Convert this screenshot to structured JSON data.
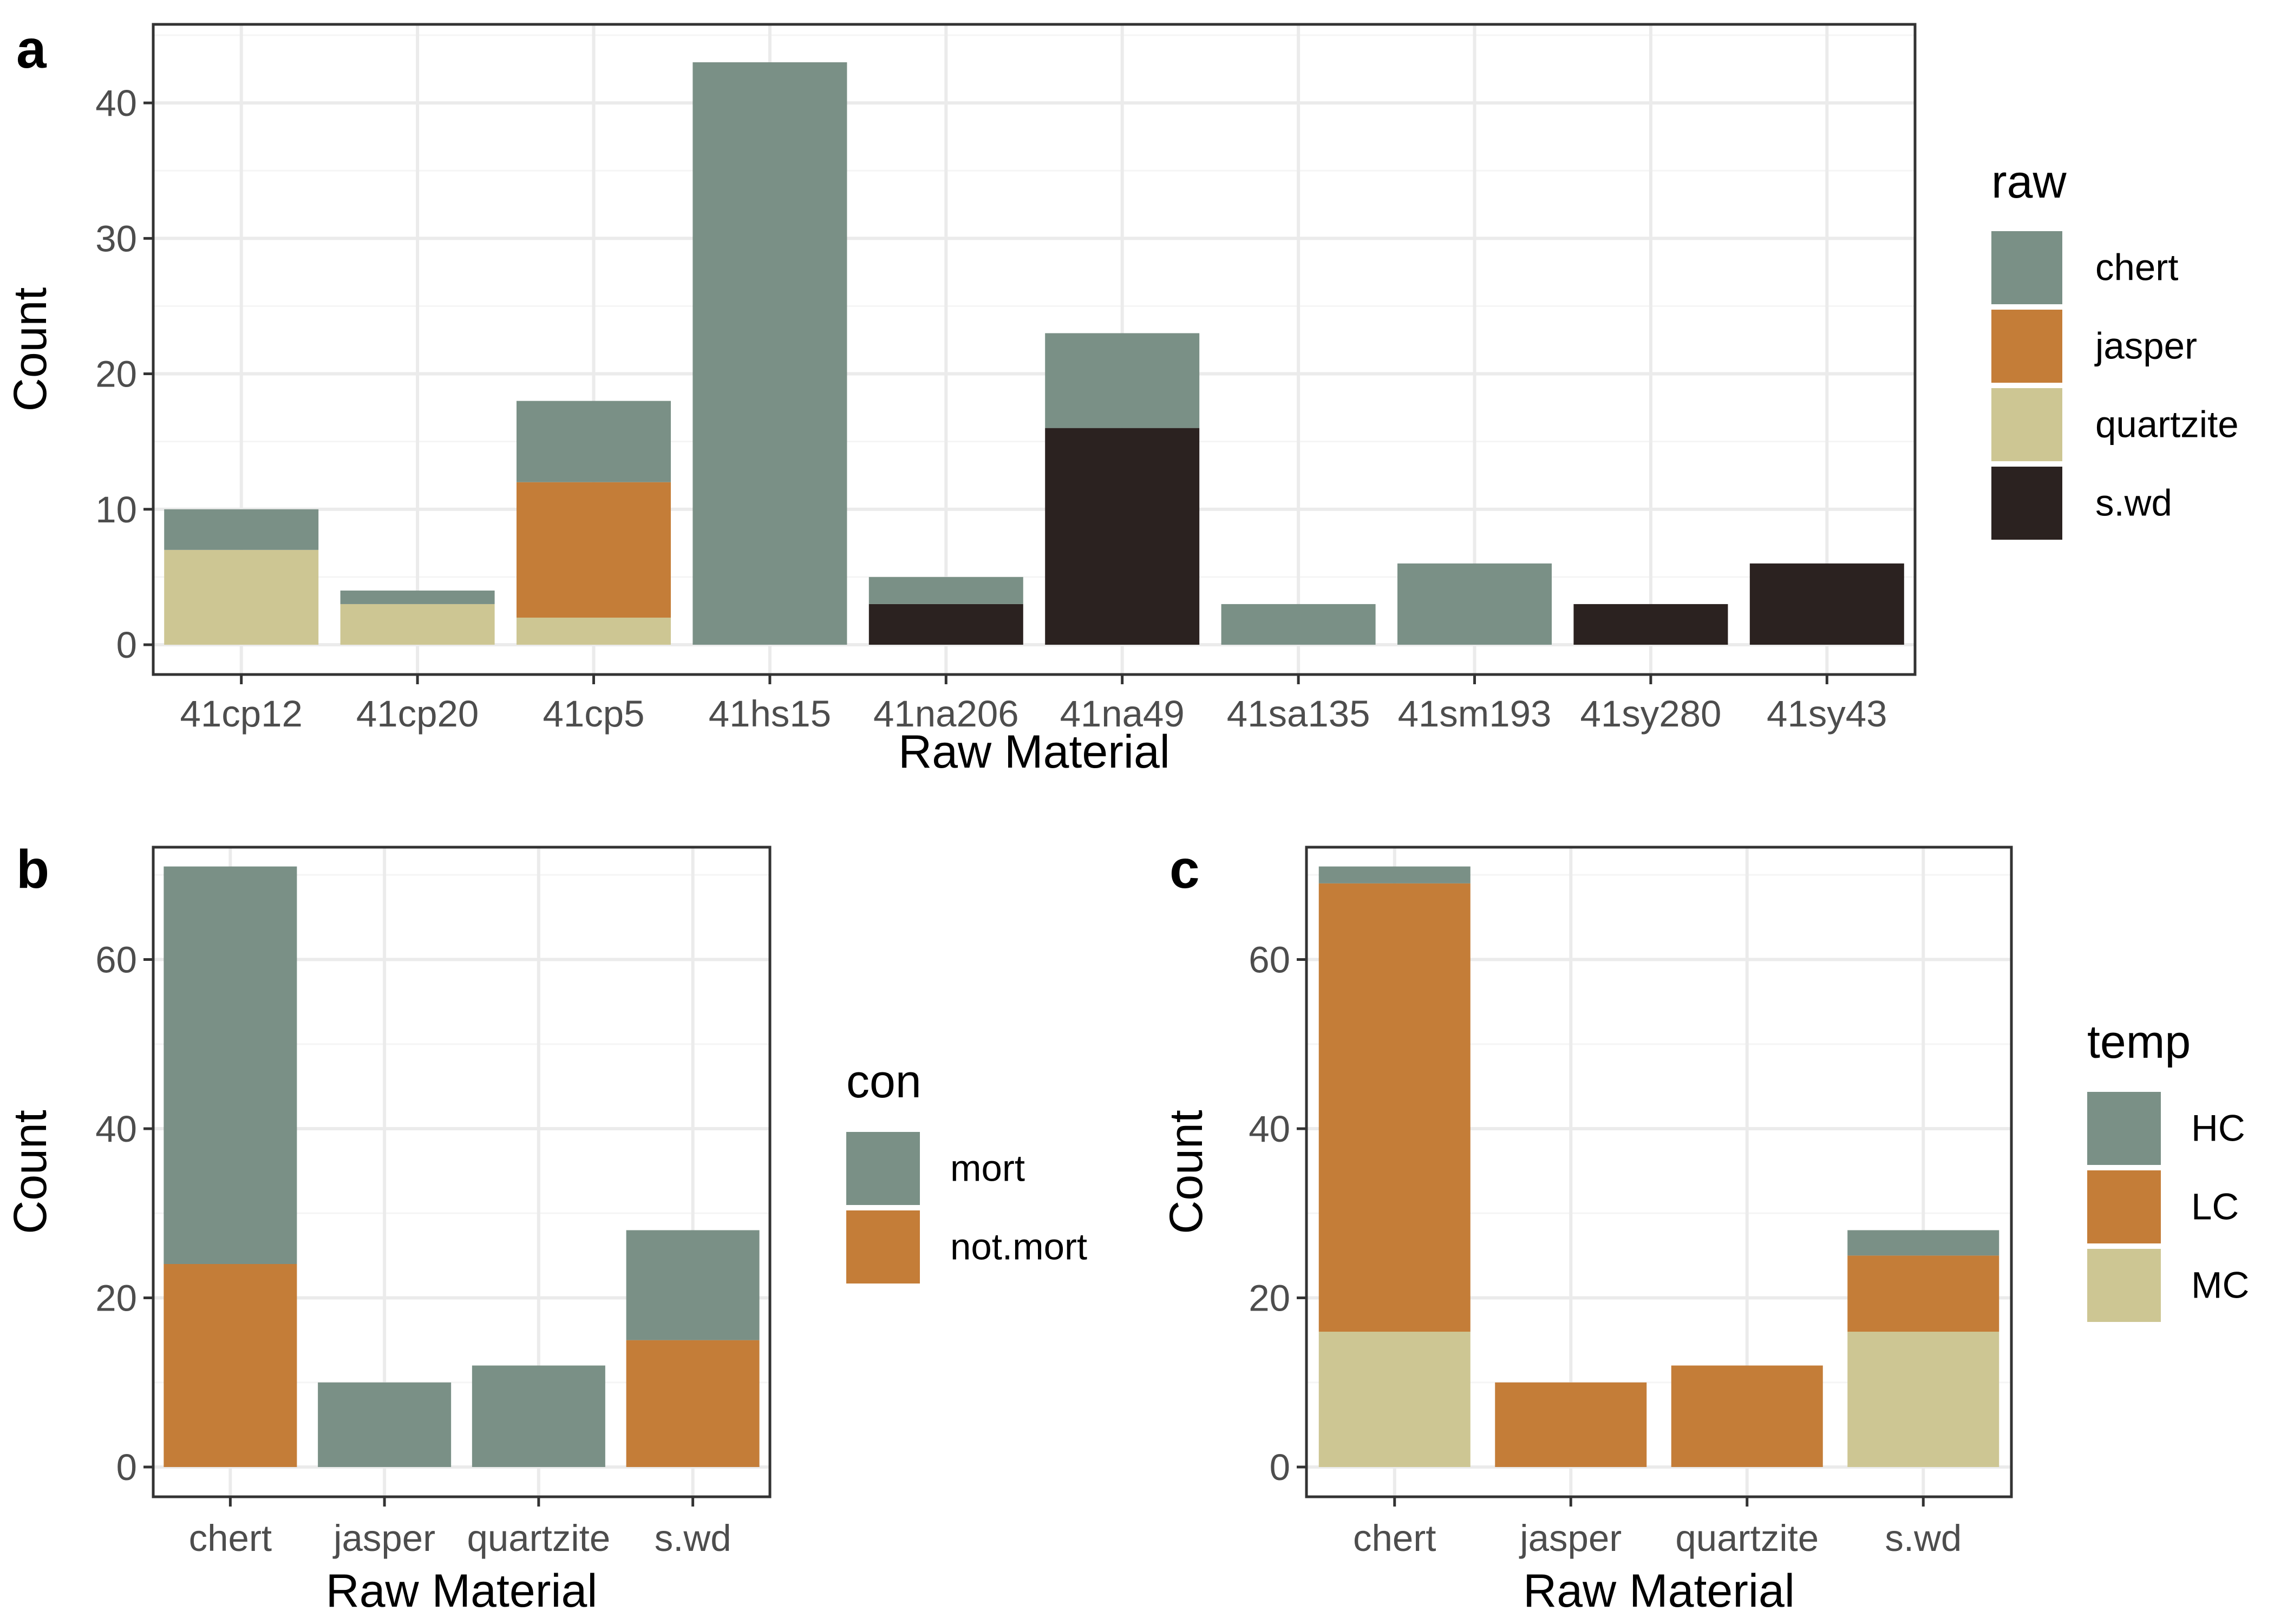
{
  "chart_data": [
    {
      "panel": "a",
      "type": "bar",
      "stacked": true,
      "xlabel": "Raw Material",
      "ylabel": "Count",
      "ylim": [
        0,
        45
      ],
      "yticks": [
        0,
        10,
        20,
        30,
        40
      ],
      "grid": true,
      "legend_position": "right",
      "legend_title": "raw",
      "categories": [
        "41cp12",
        "41cp20",
        "41cp5",
        "41hs15",
        "41na206",
        "41na49",
        "41sa135",
        "41sm193",
        "41sy280",
        "41sy43"
      ],
      "series": [
        {
          "name": "chert",
          "color": "#7a9086",
          "values": [
            3,
            1,
            6,
            43,
            2,
            7,
            3,
            6,
            0,
            0
          ]
        },
        {
          "name": "jasper",
          "color": "#c47d38",
          "values": [
            0,
            0,
            10,
            0,
            0,
            0,
            0,
            0,
            0,
            0
          ]
        },
        {
          "name": "quartzite",
          "color": "#cdc693",
          "values": [
            7,
            3,
            2,
            0,
            0,
            0,
            0,
            0,
            0,
            0
          ]
        },
        {
          "name": "s.wd",
          "color": "#2b2220",
          "values": [
            0,
            0,
            0,
            0,
            3,
            16,
            0,
            0,
            3,
            6
          ]
        }
      ]
    },
    {
      "panel": "b",
      "type": "bar",
      "stacked": true,
      "xlabel": "Raw Material",
      "ylabel": "Count",
      "ylim": [
        0,
        72
      ],
      "yticks": [
        0,
        20,
        40,
        60
      ],
      "grid": true,
      "legend_position": "right",
      "legend_title": "con",
      "categories": [
        "chert",
        "jasper",
        "quartzite",
        "s.wd"
      ],
      "series": [
        {
          "name": "mort",
          "color": "#7a9086",
          "values": [
            47,
            10,
            12,
            13
          ]
        },
        {
          "name": "not.mort",
          "color": "#c47d38",
          "values": [
            24,
            0,
            0,
            15
          ]
        }
      ]
    },
    {
      "panel": "c",
      "type": "bar",
      "stacked": true,
      "xlabel": "Raw Material",
      "ylabel": "Count",
      "ylim": [
        0,
        72
      ],
      "yticks": [
        0,
        20,
        40,
        60
      ],
      "grid": true,
      "legend_position": "right",
      "legend_title": "temp",
      "categories": [
        "chert",
        "jasper",
        "quartzite",
        "s.wd"
      ],
      "series": [
        {
          "name": "HC",
          "color": "#7a9086",
          "values": [
            2,
            0,
            0,
            3
          ]
        },
        {
          "name": "LC",
          "color": "#c47d38",
          "values": [
            53,
            10,
            12,
            9
          ]
        },
        {
          "name": "MC",
          "color": "#cdc693",
          "values": [
            16,
            0,
            0,
            16
          ]
        }
      ]
    }
  ],
  "colors": {
    "panel_border": "#333333",
    "grid_major": "#ebebeb",
    "grid_minor": "#f5f5f5",
    "tick_text": "#4d4d4d",
    "background": "#ffffff"
  }
}
